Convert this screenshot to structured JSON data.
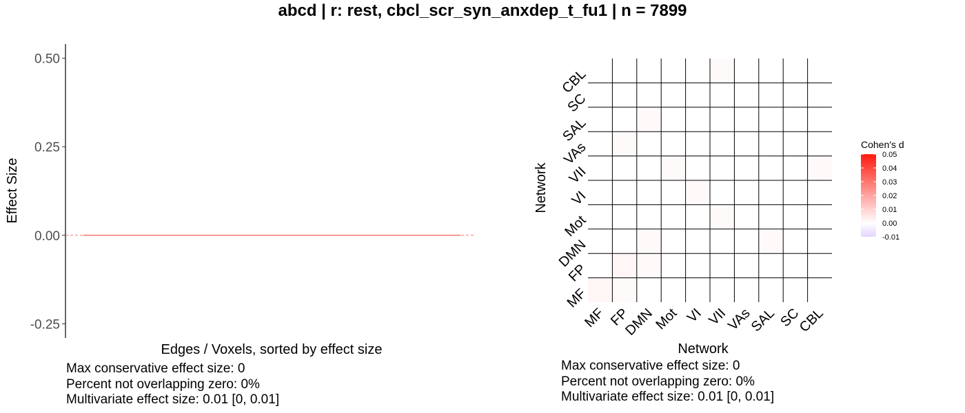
{
  "title": "abcd | r: rest, cbcl_scr_syn_anxdep_t_fu1 | n = 7899",
  "chart_data": [
    {
      "type": "line",
      "title": "",
      "xlabel": "Edges / Voxels, sorted by effect size",
      "ylabel": "Effect Size",
      "ylim": [
        -0.29,
        0.54
      ],
      "y_ticks": [
        0.5,
        0.25,
        0.0,
        -0.25
      ],
      "y_tick_labels": [
        "0.50",
        "0.25",
        "0.00",
        "-0.25"
      ],
      "x": [
        0,
        1
      ],
      "values": [
        0.0,
        0.0
      ],
      "reference_line": 0,
      "line_color": "#f8766d",
      "stats": [
        "Max conservative effect size: 0",
        "Percent not overlapping zero: 0%",
        "Multivariate effect size: 0.01 [0, 0.01]"
      ]
    },
    {
      "type": "heatmap",
      "xlabel": "Network",
      "ylabel": "Network",
      "networks": [
        "MF",
        "FP",
        "DMN",
        "Mot",
        "VI",
        "VII",
        "VAs",
        "SAL",
        "SC",
        "CBL"
      ],
      "values": [
        [
          0.002,
          0.001,
          0.0,
          0.0,
          0.0,
          0.0,
          0.0,
          0.0,
          0.0,
          0.0
        ],
        [
          0.0,
          0.002,
          0.001,
          0.0,
          0.0,
          0.0,
          0.0,
          0.0,
          0.0,
          0.0
        ],
        [
          0.0,
          0.0,
          0.001,
          0.0,
          0.0,
          0.0,
          0.0,
          0.001,
          0.0,
          0.0
        ],
        [
          0.0,
          0.0,
          0.0,
          0.0,
          0.0,
          0.001,
          0.0,
          0.0,
          0.0,
          0.0
        ],
        [
          0.0,
          0.0,
          0.0,
          0.0,
          0.001,
          0.0,
          0.0,
          0.0,
          0.0,
          0.0
        ],
        [
          0.0,
          0.0,
          0.0,
          0.001,
          0.0,
          0.0,
          0.0,
          0.0,
          0.0,
          0.001
        ],
        [
          0.0,
          0.001,
          0.0,
          0.0,
          0.0,
          0.0,
          0.0,
          0.0,
          0.0,
          0.0
        ],
        [
          0.0,
          0.0,
          0.001,
          0.0,
          0.0,
          0.0,
          0.0,
          0.0,
          0.0,
          0.0
        ],
        [
          0.0,
          0.0,
          0.0,
          0.0,
          0.0,
          0.0,
          0.0,
          0.0,
          0.0,
          0.0
        ],
        [
          0.0,
          0.0,
          0.0,
          0.0,
          0.0,
          0.001,
          0.0,
          0.0,
          0.0,
          0.0
        ]
      ],
      "legend": {
        "title": "Cohen's d",
        "placement": "right",
        "ticks": [
          0.05,
          0.04,
          0.03,
          0.02,
          0.01,
          0.0,
          -0.01
        ],
        "tick_labels": [
          "0.05",
          "0.04",
          "0.03",
          "0.02",
          "0.01",
          "0.00",
          "-0.01"
        ],
        "range": [
          -0.01,
          0.05
        ],
        "low_color": "#e3d4ff",
        "mid_color": "#ffffff",
        "high_color": "#ff1a0f"
      },
      "stats": [
        "Max conservative effect size: 0",
        "Percent not overlapping zero: 0%",
        "Multivariate effect size: 0.01 [0, 0.01]"
      ]
    }
  ]
}
